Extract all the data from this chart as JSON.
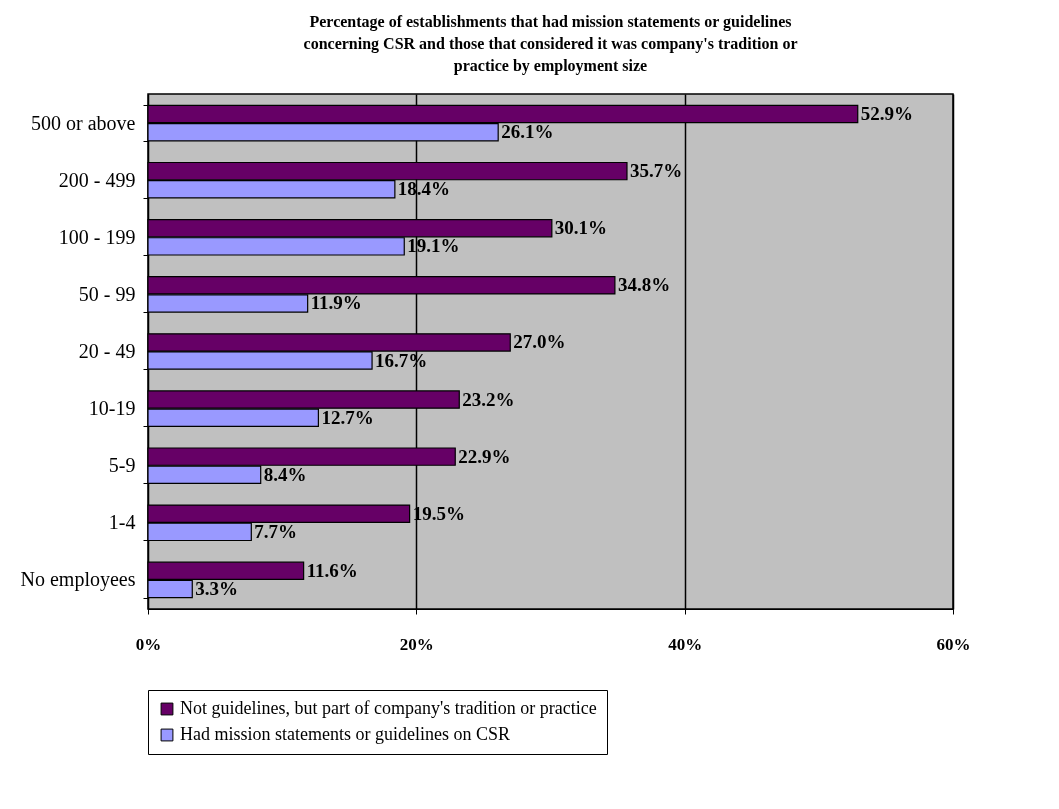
{
  "chart_data": {
    "type": "bar",
    "orientation": "horizontal",
    "title": "Percentage of establishments that had mission statements or guidelines concerning CSR and those that considered it was company's tradition or practice by employment size",
    "categories": [
      "500 or above",
      "200 - 499",
      "100 - 199",
      "50 - 99",
      "20 - 49",
      "10-19",
      "5-9",
      "1-4",
      "No employees"
    ],
    "series": [
      {
        "name": "Not guidelines, but part of company's tradition or practice",
        "color": "#660066",
        "values": [
          52.9,
          35.7,
          30.1,
          34.8,
          27.0,
          23.2,
          22.9,
          19.5,
          11.6
        ],
        "value_labels": [
          "52.9%",
          "35.7%",
          "30.1%",
          "34.8%",
          "27.0%",
          "23.2%",
          "22.9%",
          "19.5%",
          "11.6%"
        ]
      },
      {
        "name": "Had mission statements or guidelines on CSR",
        "color": "#9999ff",
        "values": [
          26.1,
          18.4,
          19.1,
          11.9,
          16.7,
          12.7,
          8.4,
          7.7,
          3.3
        ],
        "value_labels": [
          "26.1%",
          "18.4%",
          "19.1%",
          "11.9%",
          "16.7%",
          "12.7%",
          "8.4%",
          "7.7%",
          "3.3%"
        ]
      }
    ],
    "xlim": [
      0,
      60
    ],
    "xticks": [
      {
        "value": 0,
        "label": "0%"
      },
      {
        "value": 20,
        "label": "20%"
      },
      {
        "value": 40,
        "label": "40%"
      },
      {
        "value": 60,
        "label": "60%"
      }
    ],
    "grid": "x",
    "legend": "bottom"
  }
}
